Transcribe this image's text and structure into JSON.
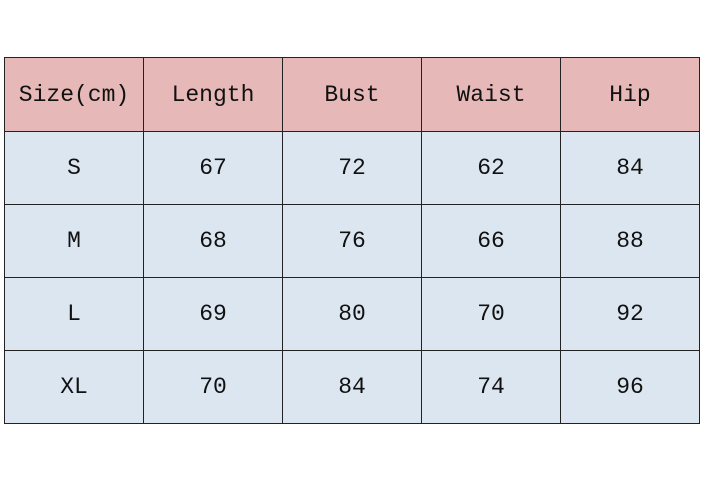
{
  "colors": {
    "header_bg": "#E6B8B7",
    "body_bg": "#DCE6F1",
    "border": "#222222"
  },
  "table": {
    "headers": [
      "Size(cm)",
      "Length",
      "Bust",
      "Waist",
      "Hip"
    ],
    "rows": [
      [
        "S",
        "67",
        "72",
        "62",
        "84"
      ],
      [
        "M",
        "68",
        "76",
        "66",
        "88"
      ],
      [
        "L",
        "69",
        "80",
        "70",
        "92"
      ],
      [
        "XL",
        "70",
        "84",
        "74",
        "96"
      ]
    ]
  }
}
